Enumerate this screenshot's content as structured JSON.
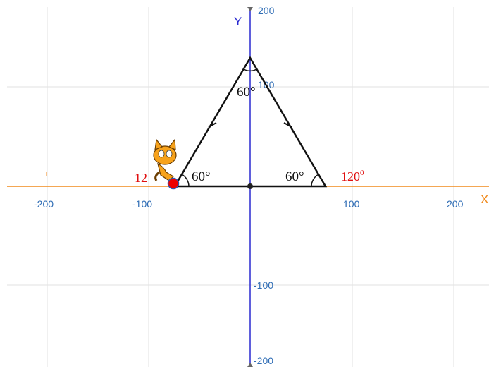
{
  "axes": {
    "x_label": "X",
    "y_label": "Y",
    "x_ticks": [
      -200,
      -100,
      100,
      200
    ],
    "y_ticks": [
      200,
      100,
      -100,
      -200
    ]
  },
  "angles": [
    "60°",
    "60°",
    "60°"
  ],
  "annotations": [
    "12",
    "120"
  ],
  "annotation_superscript": "0"
}
